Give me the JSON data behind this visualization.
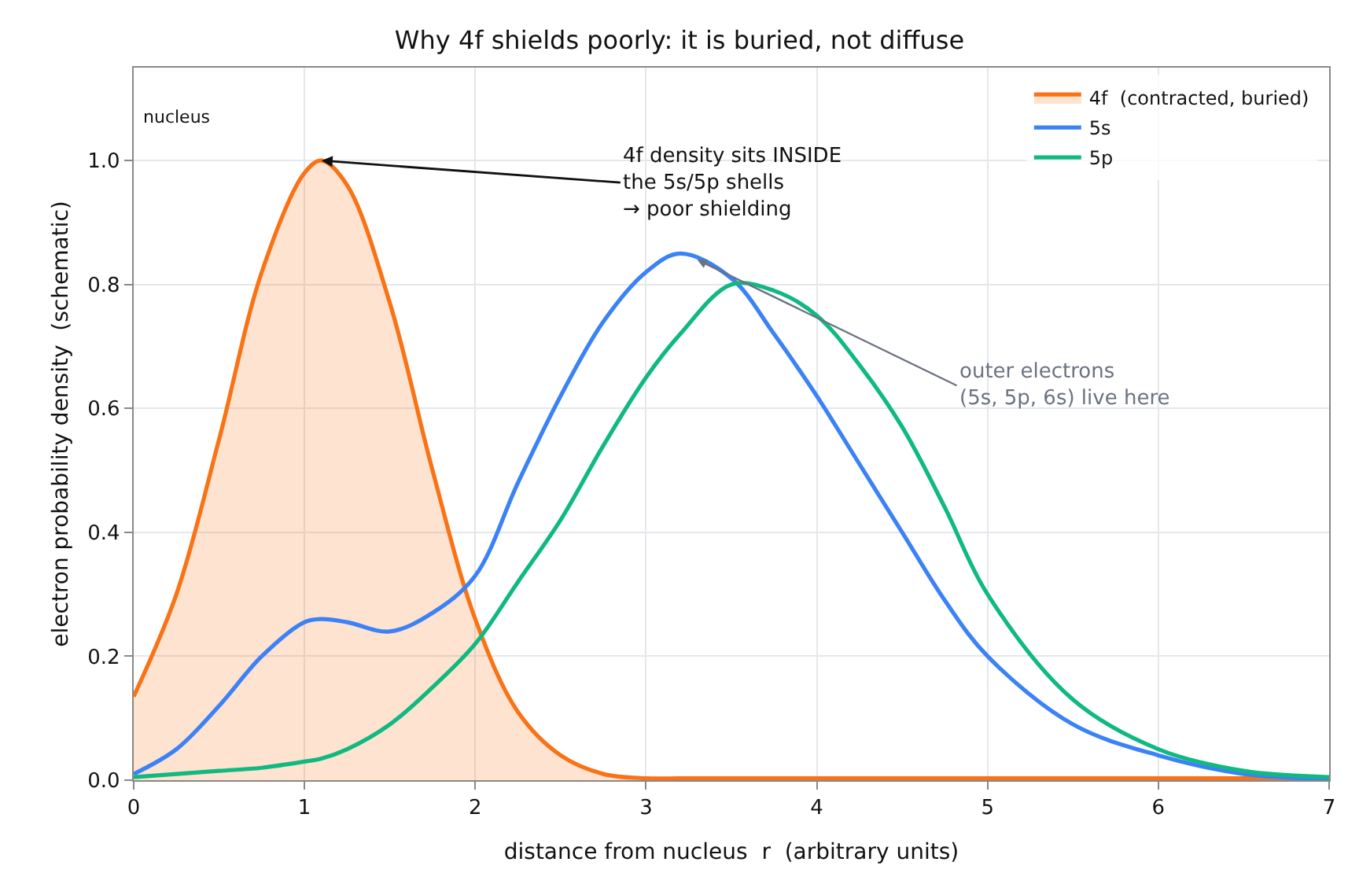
{
  "chart_data": {
    "type": "line",
    "title": "Why 4f shields poorly: it is buried, not diffuse",
    "xlabel": "distance from nucleus  r  (arbitrary units)",
    "ylabel": "electron probability density  (schematic)",
    "x": [
      0,
      0.25,
      0.5,
      0.75,
      1,
      1.1,
      1.25,
      1.5,
      1.75,
      2,
      2.25,
      2.5,
      2.75,
      3,
      3.2,
      3.5,
      3.75,
      4,
      4.25,
      4.5,
      4.75,
      5,
      5.5,
      6,
      6.5,
      7
    ],
    "series": [
      {
        "name": "4f  (contracted, buried)",
        "type": "area",
        "color": "#f97316",
        "values": [
          0.135,
          0.3,
          0.55,
          0.82,
          0.98,
          1.0,
          0.96,
          0.77,
          0.5,
          0.26,
          0.11,
          0.04,
          0.01,
          0.003,
          0.003,
          0.003,
          0.003,
          0.003,
          0.003,
          0.003,
          0.003,
          0.003,
          0.003,
          0.003,
          0.003,
          0.003
        ]
      },
      {
        "name": "5s",
        "type": "line",
        "color": "#3b82f6",
        "values": [
          0.01,
          0.05,
          0.12,
          0.2,
          0.255,
          0.26,
          0.255,
          0.24,
          0.27,
          0.33,
          0.48,
          0.62,
          0.74,
          0.82,
          0.85,
          0.81,
          0.72,
          0.62,
          0.51,
          0.4,
          0.29,
          0.2,
          0.09,
          0.04,
          0.01,
          0.002
        ]
      },
      {
        "name": "5p",
        "type": "line",
        "color": "#10b981",
        "values": [
          0.005,
          0.01,
          0.015,
          0.02,
          0.03,
          0.035,
          0.05,
          0.09,
          0.15,
          0.22,
          0.32,
          0.42,
          0.54,
          0.65,
          0.72,
          0.8,
          0.79,
          0.75,
          0.67,
          0.57,
          0.44,
          0.3,
          0.13,
          0.05,
          0.015,
          0.005
        ]
      }
    ],
    "xlim": [
      0,
      7
    ],
    "xticks": [
      0,
      1,
      2,
      3,
      4,
      5,
      6,
      7
    ],
    "ylim": [
      0,
      1.15
    ],
    "yticks": [
      {
        "value": 0,
        "label": "0.0"
      },
      0.2,
      0.4,
      0.6,
      0.8,
      {
        "value": 1,
        "label": "1.0"
      }
    ],
    "annotations": [
      "nucleus",
      {
        "text": "4f density sits INSIDE\nthe 5s/5p shells\n→ poor shielding",
        "x": 1.1,
        "y": 1.0
      },
      {
        "text": "outer electrons\n(5s, 5p, 6s) live here",
        "x": 3.3,
        "y": 0.84
      }
    ],
    "grid": true,
    "legend": "top right",
    "marker": "none",
    "line_style": "solid"
  }
}
